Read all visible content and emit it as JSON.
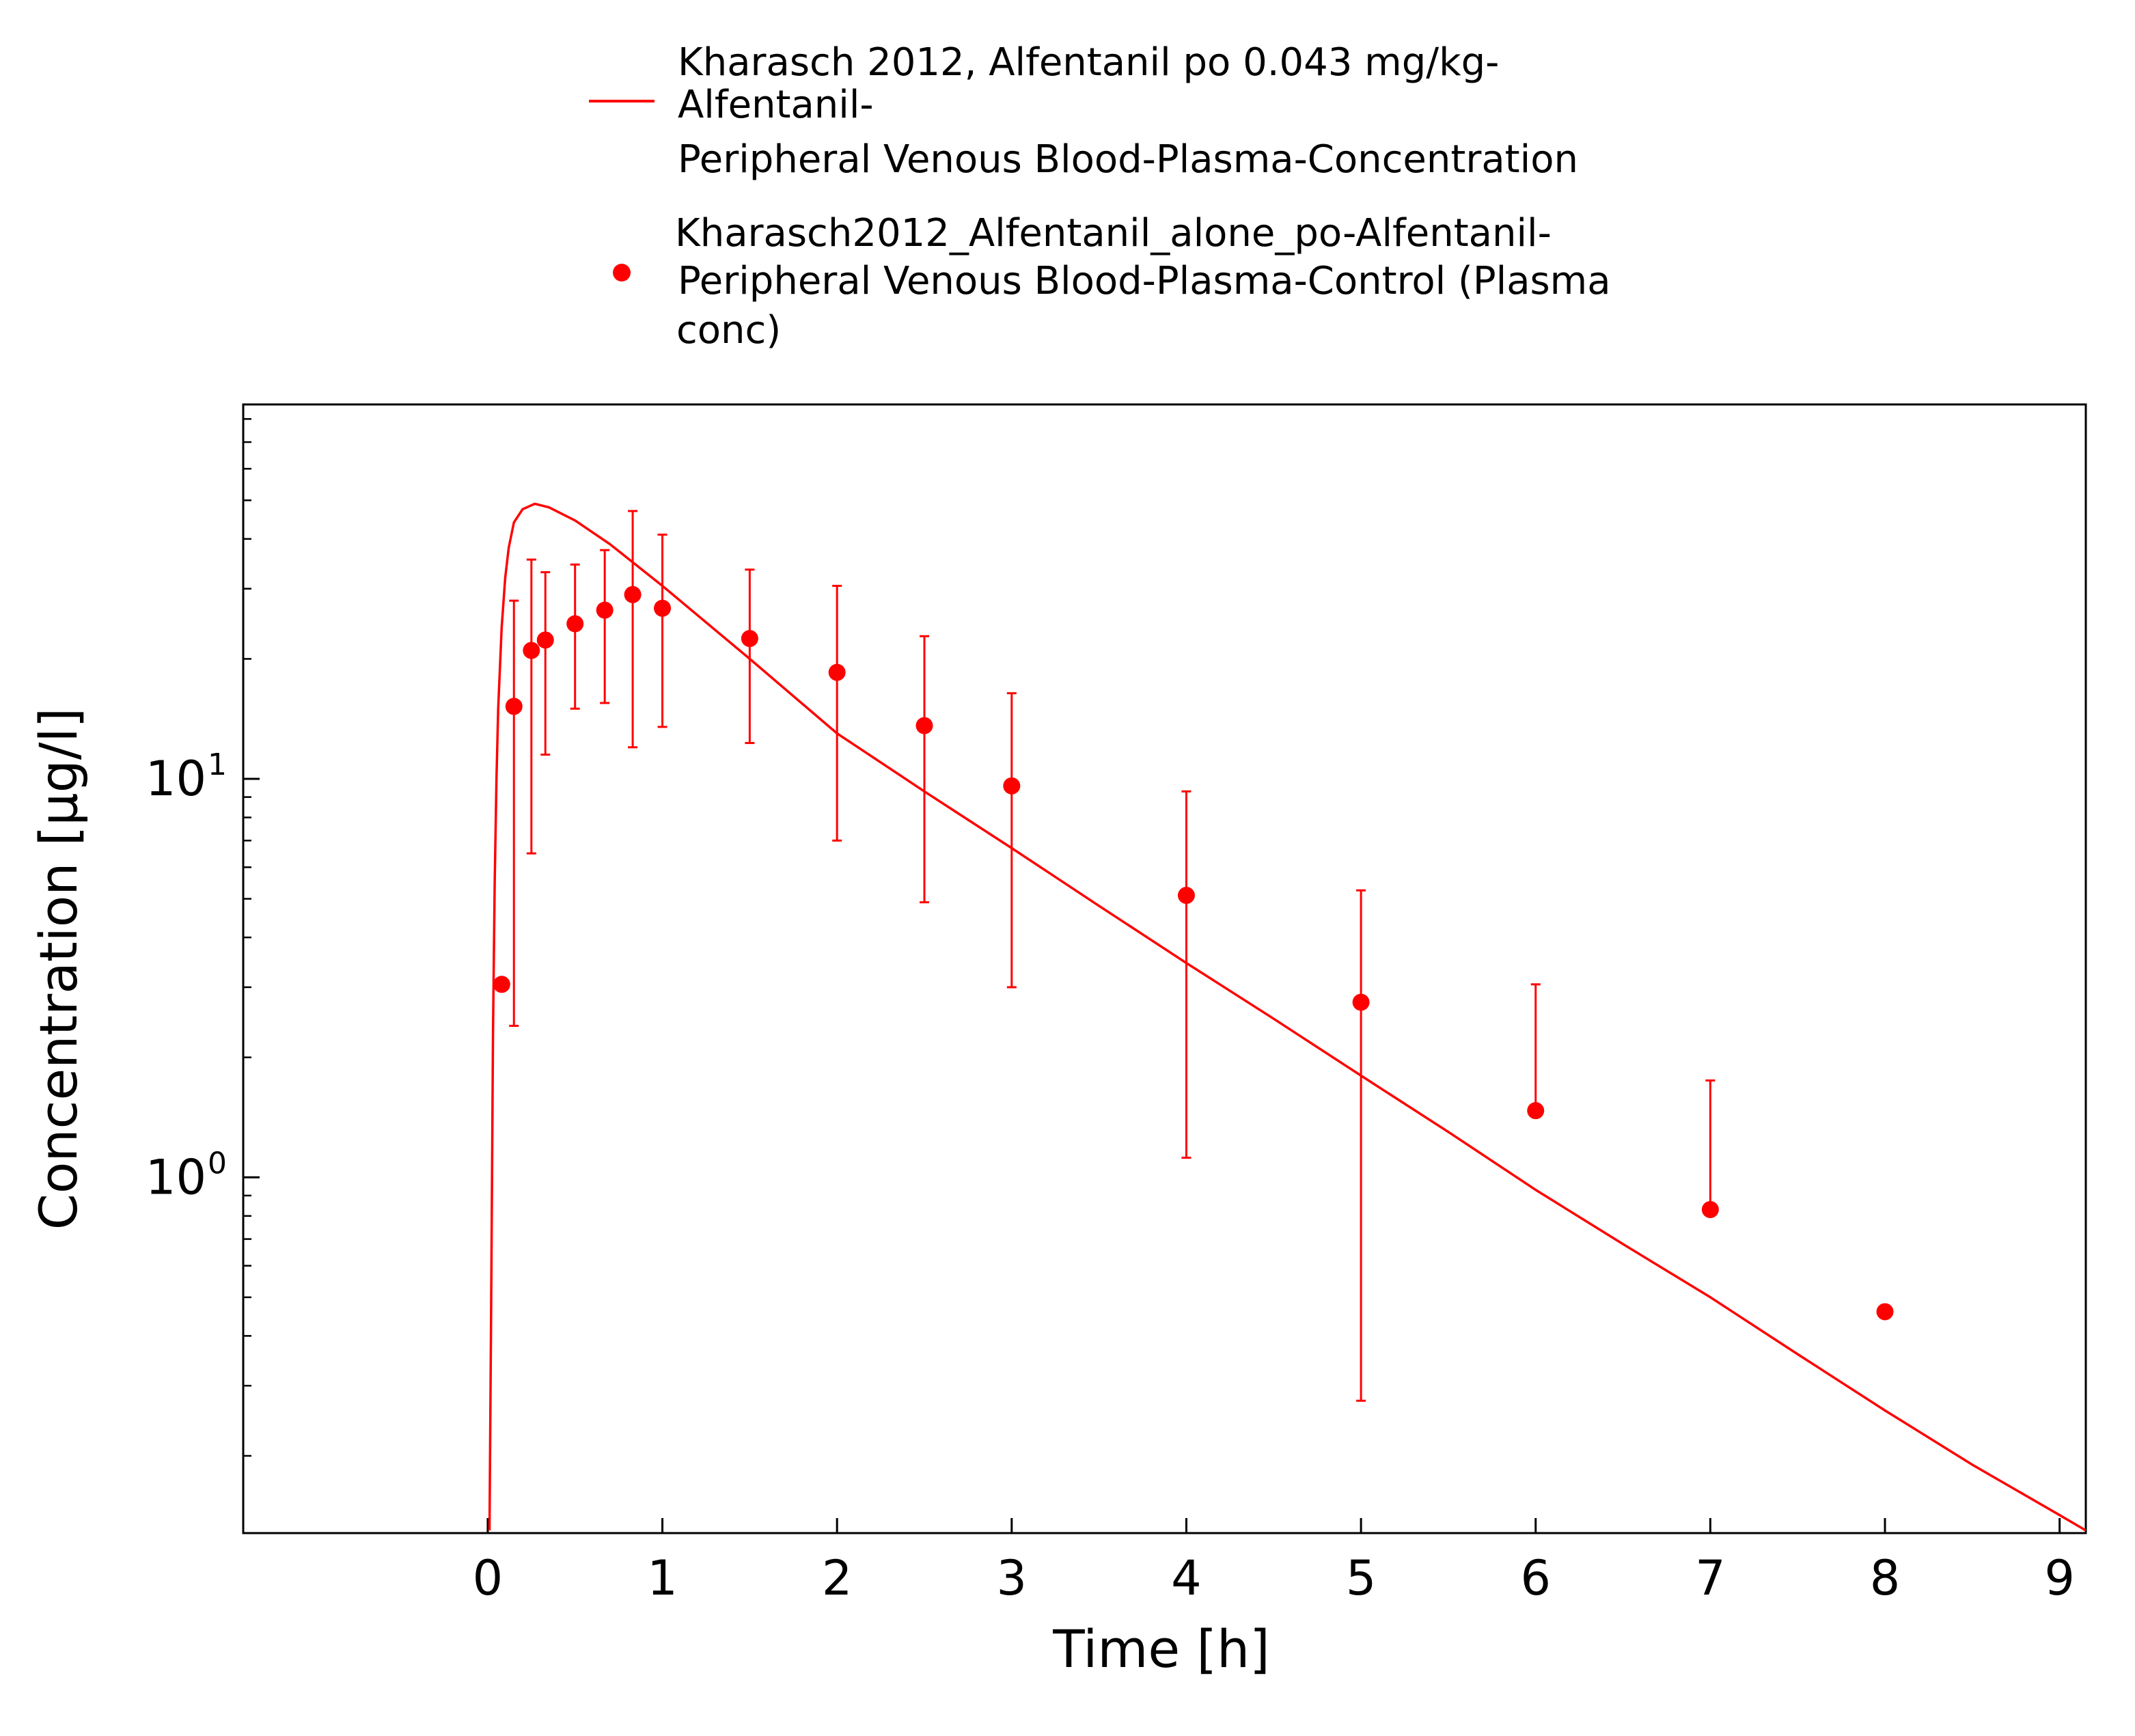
{
  "chart_data": {
    "type": "line",
    "title": "",
    "xlabel": "Time [h]",
    "ylabel": "Concentration [µg/l]",
    "x_scale": "linear",
    "y_scale": "log",
    "xlim": [
      -1.4,
      9.15
    ],
    "ylim": [
      0.128,
      87
    ],
    "x_ticks": [
      0,
      1,
      2,
      3,
      4,
      5,
      6,
      7,
      8,
      9
    ],
    "y_ticks": [
      {
        "value": 1,
        "base": "10",
        "exp": "0"
      },
      {
        "value": 10,
        "base": "10",
        "exp": "1"
      }
    ],
    "grid": false,
    "legend_position": "top",
    "color": "#ff0000",
    "series": [
      {
        "name": "Kharasch 2012, Alfentanil po 0.043 mg/kg-Alfentanil-Peripheral Venous Blood-Plasma-Concentration",
        "legend_lines": [
          "Kharasch 2012, Alfentanil po 0.043 mg/kg-",
          "Alfentanil-",
          "Peripheral Venous Blood-Plasma-Concentration"
        ],
        "kind": "line",
        "x": [
          0.01,
          0.02,
          0.03,
          0.04,
          0.05,
          0.06,
          0.08,
          0.1,
          0.12,
          0.15,
          0.2,
          0.27,
          0.35,
          0.5,
          0.7,
          1.0,
          1.5,
          2.0,
          2.5,
          3.0,
          3.5,
          4.0,
          4.5,
          5.0,
          5.5,
          6.0,
          6.5,
          7.0,
          7.5,
          8.0,
          8.5,
          9.0,
          9.15
        ],
        "y": [
          0.13,
          0.5,
          2.3,
          5.5,
          10.0,
          15.0,
          24.0,
          32.0,
          38.0,
          44.0,
          47.5,
          49.0,
          48.0,
          44.5,
          38.8,
          30.5,
          20.0,
          13.0,
          9.3,
          6.7,
          4.8,
          3.45,
          2.5,
          1.8,
          1.3,
          0.93,
          0.68,
          0.5,
          0.36,
          0.26,
          0.19,
          0.142,
          0.13
        ]
      },
      {
        "name": "Kharasch2012_Alfentanil_alone_po-Alfentanil-Peripheral Venous Blood-Plasma-Control (Plasma conc)",
        "legend_lines": [
          "Kharasch2012_Alfentanil_alone_po-Alfentanil-",
          "Peripheral Venous Blood-Plasma-Control (Plasma",
          "conc)"
        ],
        "kind": "scatter",
        "points": [
          {
            "x": 0.08,
            "y": 3.05
          },
          {
            "x": 0.15,
            "y": 15.2,
            "lo": 2.4,
            "hi": 28.0
          },
          {
            "x": 0.25,
            "y": 21.0,
            "lo": 6.5,
            "hi": 35.5
          },
          {
            "x": 0.33,
            "y": 22.3,
            "lo": 11.5,
            "hi": 33.0
          },
          {
            "x": 0.5,
            "y": 24.5,
            "lo": 15.0,
            "hi": 34.5
          },
          {
            "x": 0.67,
            "y": 26.5,
            "lo": 15.5,
            "hi": 37.5
          },
          {
            "x": 0.83,
            "y": 29.0,
            "lo": 12.0,
            "hi": 47.0
          },
          {
            "x": 1.0,
            "y": 26.8,
            "lo": 13.5,
            "hi": 41.0
          },
          {
            "x": 1.5,
            "y": 22.5,
            "lo": 12.3,
            "hi": 33.5
          },
          {
            "x": 2.0,
            "y": 18.5,
            "lo": 7.0,
            "hi": 30.5
          },
          {
            "x": 2.5,
            "y": 13.6,
            "lo": 4.9,
            "hi": 22.8
          },
          {
            "x": 3.0,
            "y": 9.6,
            "lo": 3.0,
            "hi": 16.4
          },
          {
            "x": 4.0,
            "y": 5.1,
            "lo": 1.12,
            "hi": 9.3
          },
          {
            "x": 5.0,
            "y": 2.75,
            "lo": 0.275,
            "hi": 5.25
          },
          {
            "x": 6.0,
            "y": 1.47,
            "hi": 3.05
          },
          {
            "x": 7.0,
            "y": 0.83,
            "hi": 1.75
          },
          {
            "x": 8.0,
            "y": 0.46
          }
        ]
      }
    ]
  }
}
